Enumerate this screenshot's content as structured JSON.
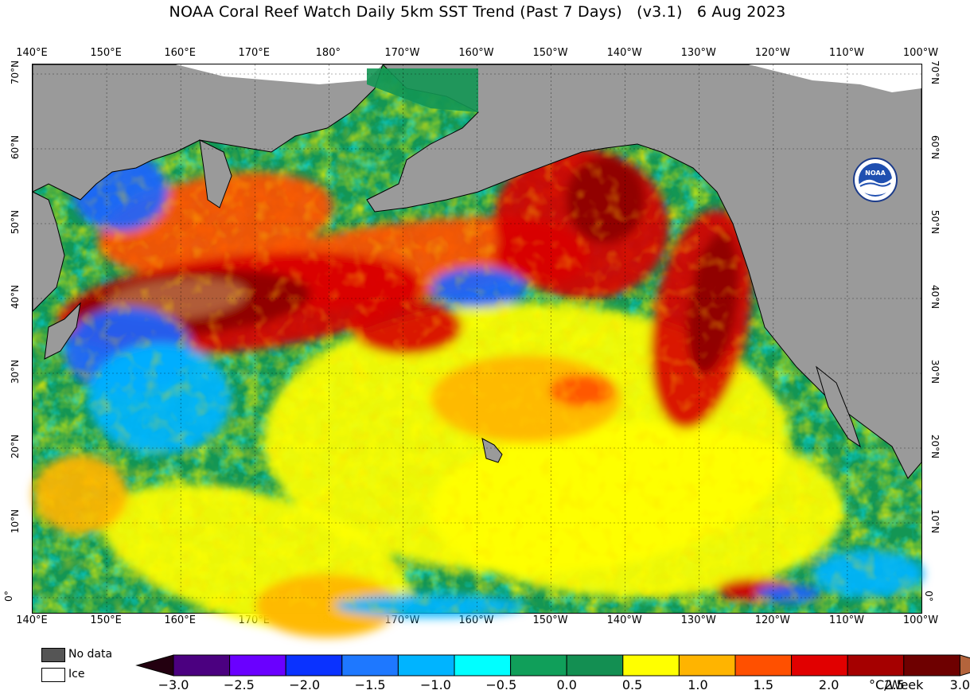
{
  "title": {
    "main": "NOAA Coral Reef Watch Daily 5km SST Trend (Past 7 Days)",
    "version": "(v3.1)",
    "date": "6 Aug 2023"
  },
  "lon_labels": [
    "140°E",
    "150°E",
    "160°E",
    "170°E",
    "180°",
    "170°W",
    "160°W",
    "150°W",
    "140°W",
    "130°W",
    "120°W",
    "110°W",
    "100°W"
  ],
  "lat_labels": [
    "70°N",
    "60°N",
    "50°N",
    "40°N",
    "30°N",
    "20°N",
    "10°N",
    "0°"
  ],
  "legend": {
    "no_data": "No data",
    "ice": "Ice"
  },
  "colorbar": {
    "labels": [
      "−3.0",
      "−2.5",
      "−2.0",
      "−1.5",
      "−1.0",
      "−0.5",
      "0.0",
      "0.5",
      "1.0",
      "1.5",
      "2.0",
      "2.5",
      "3.0"
    ],
    "unit": "°C/Week",
    "colors": [
      "#230010",
      "#4b0080",
      "#6a00ff",
      "#0a32ff",
      "#1e78ff",
      "#00b4ff",
      "#00ffff",
      "#109f5a",
      "#138f52",
      "#ffff00",
      "#ffb400",
      "#ff5000",
      "#e10000",
      "#a50000",
      "#6e0000",
      "#b4643c"
    ]
  },
  "map_colors": {
    "ocean_base": "#139654",
    "land": "#9a9a9a",
    "no_data": "#555555",
    "ice": "#ffffff",
    "warm": "#ff5000",
    "hot": "#d80000",
    "very_hot": "#8c0000",
    "extreme": "#b4643c",
    "mild_warm": "#ffb400",
    "slight_warm": "#ffff00",
    "cool": "#00b4ff",
    "cold": "#1e64ff",
    "very_cold": "#0a32c8"
  },
  "logo_text": "NOAA"
}
